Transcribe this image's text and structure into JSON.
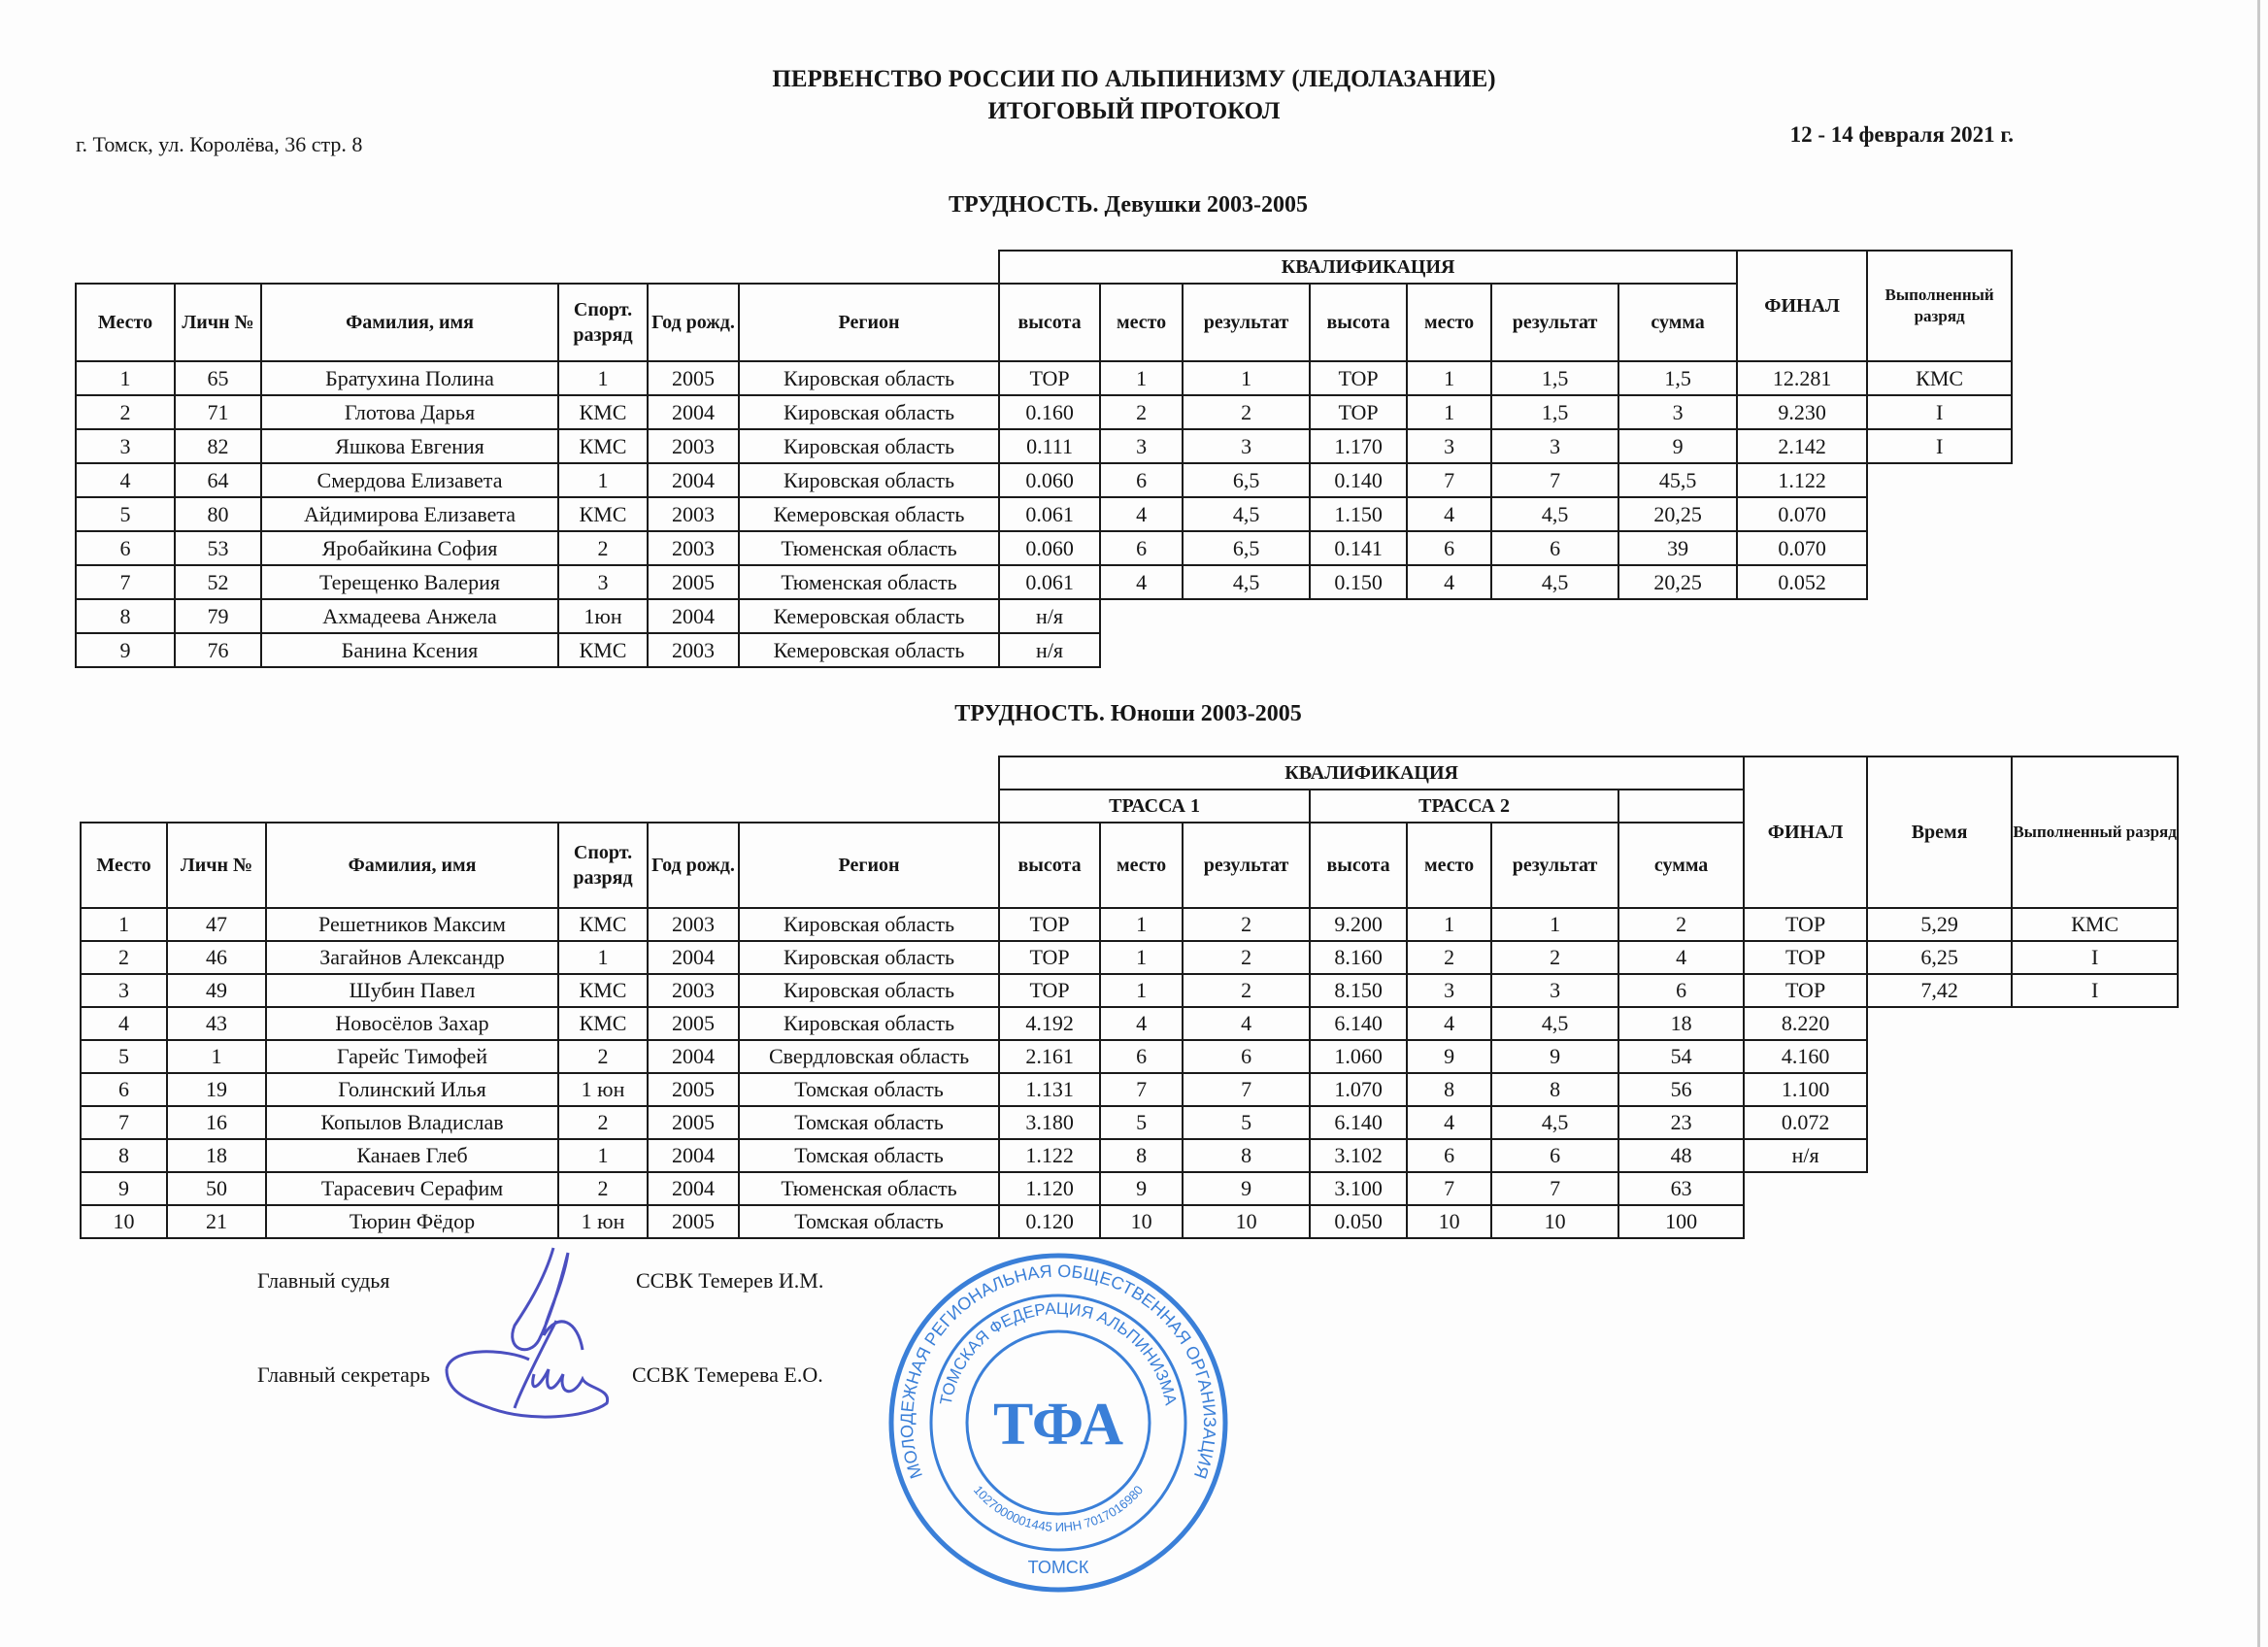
{
  "header": {
    "title_line1": "ПЕРВЕНСТВО РОССИИ ПО АЛЬПИНИЗМУ (ЛЕДОЛАЗАНИЕ)",
    "title_line2": "ИТОГОВЫЙ ПРОТОКОЛ",
    "address": "г. Томск, ул. Королёва, 36 стр. 8",
    "dates": "12 - 14 февраля 2021 г."
  },
  "girls": {
    "title": "ТРУДНОСТЬ. Девушки 2003-2005",
    "headers": {
      "qualification": "КВАЛИФИКАЦИЯ",
      "place": "Место",
      "number": "Личн №",
      "name": "Фамилия, имя",
      "rank": "Спорт. разряд",
      "year": "Год рожд.",
      "region": "Регион",
      "height1": "высота",
      "place1": "место",
      "result1": "результат",
      "height2": "высота",
      "place2": "место",
      "result2": "результат",
      "sum": "сумма",
      "final": "ФИНАЛ",
      "grade": "Выполненный разряд"
    },
    "rows": [
      [
        "1",
        "65",
        "Братухина Полина",
        "1",
        "2005",
        "Кировская область",
        "TOP",
        "1",
        "1",
        "TOP",
        "1",
        "1,5",
        "1,5",
        "12.281",
        "КМС"
      ],
      [
        "2",
        "71",
        "Глотова Дарья",
        "КМС",
        "2004",
        "Кировская область",
        "0.160",
        "2",
        "2",
        "TOP",
        "1",
        "1,5",
        "3",
        "9.230",
        "I"
      ],
      [
        "3",
        "82",
        "Яшкова Евгения",
        "КМС",
        "2003",
        "Кировская область",
        "0.111",
        "3",
        "3",
        "1.170",
        "3",
        "3",
        "9",
        "2.142",
        "I"
      ],
      [
        "4",
        "64",
        "Смердова Елизавета",
        "1",
        "2004",
        "Кировская область",
        "0.060",
        "6",
        "6,5",
        "0.140",
        "7",
        "7",
        "45,5",
        "1.122"
      ],
      [
        "5",
        "80",
        "Айдимирова Елизавета",
        "КМС",
        "2003",
        "Кемеровская область",
        "0.061",
        "4",
        "4,5",
        "1.150",
        "4",
        "4,5",
        "20,25",
        "0.070"
      ],
      [
        "6",
        "53",
        "Яробайкина София",
        "2",
        "2003",
        "Тюменская область",
        "0.060",
        "6",
        "6,5",
        "0.141",
        "6",
        "6",
        "39",
        "0.070"
      ],
      [
        "7",
        "52",
        "Терещенко Валерия",
        "3",
        "2005",
        "Тюменская область",
        "0.061",
        "4",
        "4,5",
        "0.150",
        "4",
        "4,5",
        "20,25",
        "0.052"
      ],
      [
        "8",
        "79",
        "Ахмадеева Анжела",
        "1юн",
        "2004",
        "Кемеровская область",
        "н/я"
      ],
      [
        "9",
        "76",
        "Банина Ксения",
        "КМС",
        "2003",
        "Кемеровская область",
        "н/я"
      ]
    ]
  },
  "boys": {
    "title": "ТРУДНОСТЬ. Юноши 2003-2005",
    "headers": {
      "qualification": "КВАЛИФИКАЦИЯ",
      "route1": "ТРАССА 1",
      "route2": "ТРАССА 2",
      "place": "Место",
      "number": "Личн №",
      "name": "Фамилия, имя",
      "rank": "Спорт. разряд",
      "year": "Год рожд.",
      "region": "Регион",
      "height1": "высота",
      "place1": "место",
      "result1": "результат",
      "height2": "высота",
      "place2": "место",
      "result2": "результат",
      "sum": "сумма",
      "final": "ФИНАЛ",
      "time": "Время",
      "grade": "Выполненный разряд"
    },
    "rows": [
      [
        "1",
        "47",
        "Решетников Максим",
        "КМС",
        "2003",
        "Кировская область",
        "TOP",
        "1",
        "2",
        "9.200",
        "1",
        "1",
        "2",
        "TOP",
        "5,29",
        "КМС"
      ],
      [
        "2",
        "46",
        "Загайнов Александр",
        "1",
        "2004",
        "Кировская область",
        "TOP",
        "1",
        "2",
        "8.160",
        "2",
        "2",
        "4",
        "TOP",
        "6,25",
        "I"
      ],
      [
        "3",
        "49",
        "Шубин Павел",
        "КМС",
        "2003",
        "Кировская область",
        "TOP",
        "1",
        "2",
        "8.150",
        "3",
        "3",
        "6",
        "TOP",
        "7,42",
        "I"
      ],
      [
        "4",
        "43",
        "Новосёлов Захар",
        "КМС",
        "2005",
        "Кировская область",
        "4.192",
        "4",
        "4",
        "6.140",
        "4",
        "4,5",
        "18",
        "8.220"
      ],
      [
        "5",
        "1",
        "Гарейс Тимофей",
        "2",
        "2004",
        "Свердловская область",
        "2.161",
        "6",
        "6",
        "1.060",
        "9",
        "9",
        "54",
        "4.160"
      ],
      [
        "6",
        "19",
        "Голинский Илья",
        "1 юн",
        "2005",
        "Томская область",
        "1.131",
        "7",
        "7",
        "1.070",
        "8",
        "8",
        "56",
        "1.100"
      ],
      [
        "7",
        "16",
        "Копылов Владислав",
        "2",
        "2005",
        "Томская область",
        "3.180",
        "5",
        "5",
        "6.140",
        "4",
        "4,5",
        "23",
        "0.072"
      ],
      [
        "8",
        "18",
        "Канаев Глеб",
        "1",
        "2004",
        "Томская область",
        "1.122",
        "8",
        "8",
        "3.102",
        "6",
        "6",
        "48",
        "н/я"
      ],
      [
        "9",
        "50",
        "Тарасевич Серафим",
        "2",
        "2004",
        "Тюменская область",
        "1.120",
        "9",
        "9",
        "3.100",
        "7",
        "7",
        "63"
      ],
      [
        "10",
        "21",
        "Тюрин Фёдор",
        "1 юн",
        "2005",
        "Томская область",
        "0.120",
        "10",
        "10",
        "0.050",
        "10",
        "10",
        "100"
      ]
    ]
  },
  "footer": {
    "chief_judge_label": "Главный судья",
    "chief_judge_name": "ССВК Темерев И.М.",
    "chief_secretary_label": "Главный секретарь",
    "chief_secretary_name": "ССВК Темерева Е.О."
  },
  "stamp": {
    "outer_text": "МОЛОДЕЖНАЯ РЕГИОНАЛЬНАЯ ОБЩЕСТВЕННАЯ ОРГАНИЗАЦИЯ",
    "inner_text": "ТОМСКАЯ ФЕДЕРАЦИЯ АЛЬПИНИЗМА",
    "logo": "ТФА",
    "city": "ТОМСК",
    "ids": "1027000001445 ИНН 7017016980",
    "color": "#3a7fd8"
  }
}
